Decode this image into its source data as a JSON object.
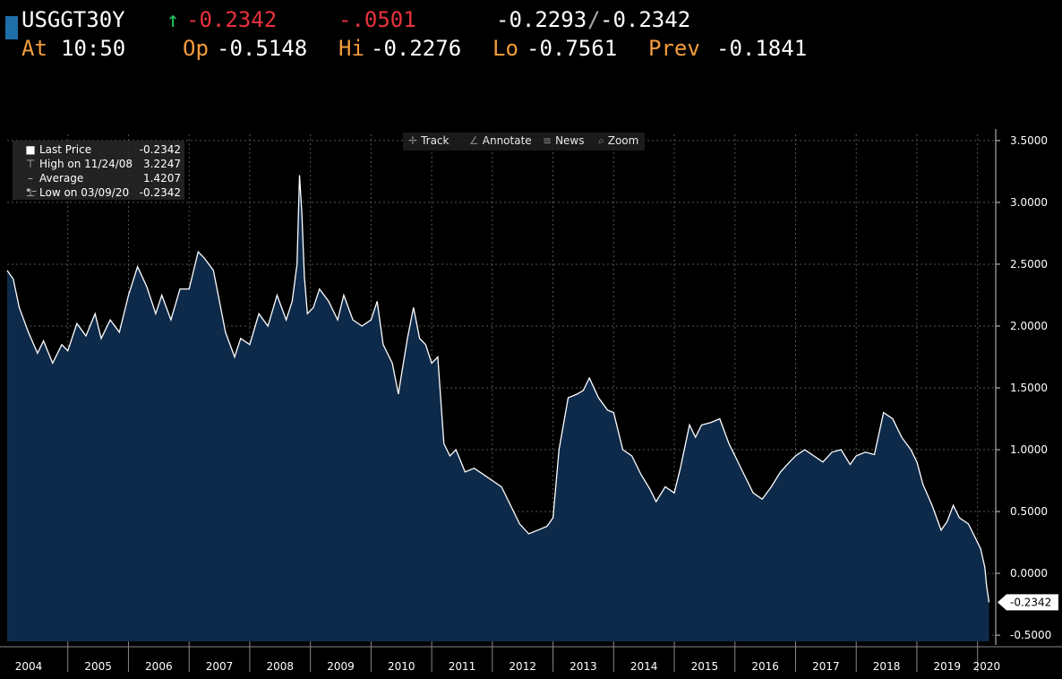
{
  "header": {
    "ticker": "USGGT30Y",
    "arrow": "↑",
    "last": "-0.2342",
    "change": "-.0501",
    "bid": "-0.2293",
    "separator": "/",
    "ask": "-0.2342",
    "at_label": "At",
    "at_time": "10:50",
    "op_label": "Op",
    "op_value": "-0.5148",
    "hi_label": "Hi",
    "hi_value": "-0.2276",
    "lo_label": "Lo",
    "lo_value": "-0.7561",
    "prev_label": "Prev",
    "prev_value": "-0.1841"
  },
  "toolbar": {
    "track": "Track",
    "annotate": "Annotate",
    "news": "News",
    "zoom": "Zoom"
  },
  "legend": {
    "items": [
      {
        "label": "Last Price",
        "value": "-0.2342"
      },
      {
        "label": "High on 11/24/08",
        "value": "3.2247"
      },
      {
        "label": "Average",
        "value": "1.4207"
      },
      {
        "label": "Low on 03/09/20",
        "value": "-0.2342"
      }
    ]
  },
  "colors": {
    "fill": "#0e2a4a",
    "line": "#ffffff",
    "grid": "#555555",
    "orange": "#f39c3c",
    "red": "#e8323c",
    "green": "#22c55e"
  },
  "chart_data": {
    "type": "area",
    "ylim": [
      -0.55,
      3.55
    ],
    "xlim": [
      2004.0,
      2020.3
    ],
    "yticks": [
      "3.5000",
      "3.0000",
      "2.5000",
      "2.0000",
      "1.5000",
      "1.0000",
      "0.5000",
      "0.0000",
      "-0.5000"
    ],
    "ytick_values": [
      3.5,
      3.0,
      2.5,
      2.0,
      1.5,
      1.0,
      0.5,
      0.0,
      -0.5
    ],
    "xtick_labels": [
      "2004",
      "2005",
      "2006",
      "2007",
      "2008",
      "2009",
      "2010",
      "2011",
      "2012",
      "2013",
      "2014",
      "2015",
      "2016",
      "2017",
      "2018",
      "2019",
      "2020"
    ],
    "xtick_values": [
      2004,
      2005,
      2006,
      2007,
      2008,
      2009,
      2010,
      2011,
      2012,
      2013,
      2014,
      2015,
      2016,
      2017,
      2018,
      2019,
      2020
    ],
    "last_label": "-0.2342",
    "last_value": -0.2342,
    "grid": true,
    "x": [
      2004.0,
      2004.1,
      2004.2,
      2004.35,
      2004.5,
      2004.6,
      2004.75,
      2004.9,
      2005.0,
      2005.15,
      2005.3,
      2005.45,
      2005.55,
      2005.7,
      2005.85,
      2006.0,
      2006.15,
      2006.3,
      2006.45,
      2006.55,
      2006.7,
      2006.85,
      2007.0,
      2007.15,
      2007.25,
      2007.4,
      2007.5,
      2007.6,
      2007.75,
      2007.85,
      2008.0,
      2008.15,
      2008.3,
      2008.45,
      2008.6,
      2008.7,
      2008.78,
      2008.82,
      2008.86,
      2008.9,
      2008.95,
      2009.05,
      2009.15,
      2009.3,
      2009.45,
      2009.55,
      2009.7,
      2009.85,
      2010.0,
      2010.1,
      2010.2,
      2010.35,
      2010.45,
      2010.5,
      2010.6,
      2010.7,
      2010.8,
      2010.9,
      2011.0,
      2011.1,
      2011.2,
      2011.3,
      2011.4,
      2011.55,
      2011.7,
      2011.85,
      2012.0,
      2012.15,
      2012.3,
      2012.45,
      2012.6,
      2012.75,
      2012.9,
      2013.0,
      2013.1,
      2013.25,
      2013.4,
      2013.5,
      2013.6,
      2013.75,
      2013.9,
      2014.0,
      2014.15,
      2014.3,
      2014.45,
      2014.6,
      2014.7,
      2014.85,
      2015.0,
      2015.1,
      2015.25,
      2015.35,
      2015.45,
      2015.6,
      2015.75,
      2015.9,
      2016.0,
      2016.15,
      2016.3,
      2016.45,
      2016.6,
      2016.75,
      2016.9,
      2017.0,
      2017.15,
      2017.3,
      2017.45,
      2017.6,
      2017.75,
      2017.9,
      2018.0,
      2018.15,
      2018.3,
      2018.45,
      2018.6,
      2018.75,
      2018.9,
      2019.0,
      2019.1,
      2019.25,
      2019.4,
      2019.5,
      2019.6,
      2019.7,
      2019.85,
      2019.95,
      2020.05,
      2020.12,
      2020.15,
      2020.19
    ],
    "values": [
      2.45,
      2.38,
      2.15,
      1.95,
      1.78,
      1.88,
      1.7,
      1.85,
      1.8,
      2.02,
      1.92,
      2.1,
      1.9,
      2.05,
      1.95,
      2.25,
      2.48,
      2.32,
      2.1,
      2.25,
      2.05,
      2.3,
      2.3,
      2.6,
      2.55,
      2.45,
      2.2,
      1.95,
      1.75,
      1.9,
      1.85,
      2.1,
      2.0,
      2.25,
      2.05,
      2.2,
      2.5,
      3.22,
      2.9,
      2.4,
      2.1,
      2.15,
      2.3,
      2.2,
      2.05,
      2.25,
      2.05,
      2.0,
      2.05,
      2.2,
      1.85,
      1.7,
      1.45,
      1.6,
      1.9,
      2.15,
      1.9,
      1.85,
      1.7,
      1.75,
      1.05,
      0.95,
      1.0,
      0.82,
      0.85,
      0.8,
      0.75,
      0.7,
      0.55,
      0.4,
      0.32,
      0.35,
      0.38,
      0.45,
      1.0,
      1.42,
      1.45,
      1.48,
      1.58,
      1.42,
      1.32,
      1.3,
      1.0,
      0.95,
      0.8,
      0.68,
      0.58,
      0.7,
      0.65,
      0.85,
      1.2,
      1.1,
      1.2,
      1.22,
      1.25,
      1.05,
      0.95,
      0.8,
      0.65,
      0.6,
      0.7,
      0.82,
      0.9,
      0.95,
      1.0,
      0.95,
      0.9,
      0.98,
      1.0,
      0.88,
      0.95,
      0.98,
      0.96,
      1.3,
      1.25,
      1.1,
      1.0,
      0.9,
      0.72,
      0.55,
      0.35,
      0.42,
      0.55,
      0.45,
      0.4,
      0.3,
      0.2,
      0.05,
      -0.1,
      -0.2342
    ]
  }
}
